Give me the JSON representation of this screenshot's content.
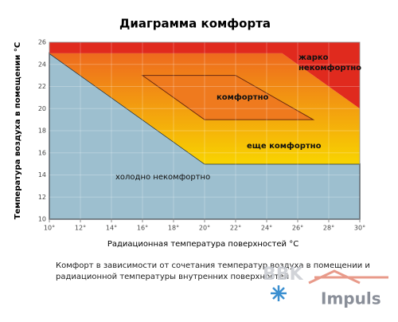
{
  "chart_data": {
    "type": "region",
    "title": "Диаграмма комфорта",
    "x_label": "Радиационная температура поверхностей °С",
    "y_label": "Температура воздуха в помещении °С",
    "xlim": [
      10,
      30
    ],
    "ylim": [
      10,
      26
    ],
    "xticks": [
      {
        "value": 10,
        "label": "10°"
      },
      {
        "value": 12,
        "label": "12°"
      },
      {
        "value": 14,
        "label": "14°"
      },
      {
        "value": 16,
        "label": "16°"
      },
      {
        "value": 18,
        "label": "18°"
      },
      {
        "value": 20,
        "label": "20°"
      },
      {
        "value": 22,
        "label": "22°"
      },
      {
        "value": 24,
        "label": "24°"
      },
      {
        "value": 26,
        "label": "26°"
      },
      {
        "value": 28,
        "label": "28°"
      },
      {
        "value": 30,
        "label": "30°"
      }
    ],
    "yticks": [
      10,
      12,
      14,
      16,
      18,
      20,
      22,
      24,
      26
    ],
    "grid": true,
    "regions": [
      {
        "name": "холодно некомфортно",
        "color": "#9dbfcf",
        "x": [
          10,
          10,
          20,
          30,
          30
        ],
        "y": [
          10,
          25,
          15,
          15,
          10
        ]
      },
      {
        "name": "еще комфортно",
        "color": "#f5c400",
        "x": [
          10,
          25,
          30,
          30,
          20
        ],
        "y": [
          25,
          25,
          20,
          15,
          15
        ]
      },
      {
        "name": "жарко некомфортно",
        "color": "#e02a1e",
        "x": [
          10,
          30,
          30,
          25,
          10
        ],
        "y": [
          26,
          26,
          20,
          25,
          25
        ]
      },
      {
        "name": "комфортно",
        "color": "#ef7a1e",
        "x": [
          16,
          22,
          27,
          20
        ],
        "y": [
          23,
          23,
          19,
          19
        ]
      }
    ],
    "caption": [
      "Комфорт в зависимости от сочетания температур воздуха в помещении и",
      "радиационной температуры внутренних поверхностей"
    ],
    "watermark": {
      "brand": "BBK",
      "name": "Impuls"
    }
  }
}
